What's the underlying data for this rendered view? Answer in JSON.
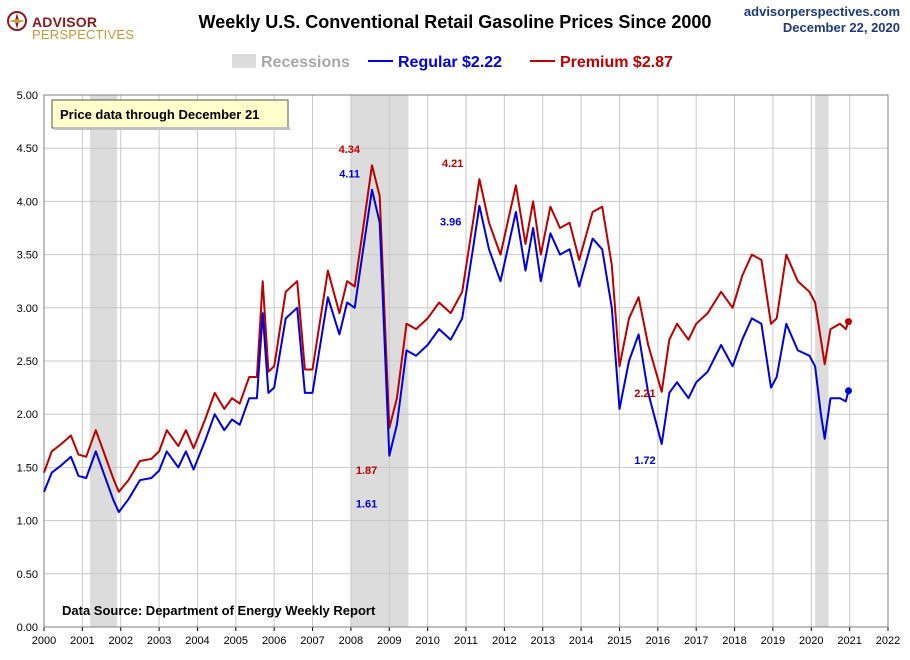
{
  "header": {
    "logo_line1": "ADVISOR",
    "logo_line2": "PERSPECTIVES",
    "site_url": "advisorperspectives.com",
    "site_date": "December 22, 2020"
  },
  "colors": {
    "regular": "#0000dd",
    "premium": "#bb0000",
    "recession": "#dcdcdc",
    "note_bg": "#ffffcc"
  },
  "chart_data": {
    "type": "line",
    "title": "Weekly U.S. Conventional Retail Gasoline Prices Since 2000",
    "xlabel": "",
    "ylabel": "",
    "xlim": [
      2000,
      2022
    ],
    "ylim": [
      0,
      5
    ],
    "x_ticks": [
      "2000",
      "2001",
      "2002",
      "2003",
      "2004",
      "2005",
      "2006",
      "2007",
      "2008",
      "2009",
      "2010",
      "2011",
      "2012",
      "2013",
      "2014",
      "2015",
      "2016",
      "2017",
      "2018",
      "2019",
      "2020",
      "2021",
      "2022"
    ],
    "y_ticks": [
      "0.00",
      "0.50",
      "1.00",
      "1.50",
      "2.00",
      "2.50",
      "3.00",
      "3.50",
      "4.00",
      "4.50",
      "5.00"
    ],
    "grid": true,
    "legend_position": "top-center",
    "recessions": {
      "label": "Recessions",
      "periods": [
        [
          2001.2,
          2001.9
        ],
        [
          2008.0,
          2009.5
        ],
        [
          2020.1,
          2020.45
        ]
      ]
    },
    "series": [
      {
        "name": "Regular",
        "legend_value": "$2.22",
        "points": [
          [
            2000.0,
            1.27
          ],
          [
            2000.2,
            1.45
          ],
          [
            2000.45,
            1.52
          ],
          [
            2000.7,
            1.6
          ],
          [
            2000.9,
            1.42
          ],
          [
            2001.1,
            1.4
          ],
          [
            2001.35,
            1.65
          ],
          [
            2001.55,
            1.45
          ],
          [
            2001.8,
            1.2
          ],
          [
            2001.95,
            1.08
          ],
          [
            2002.2,
            1.2
          ],
          [
            2002.5,
            1.38
          ],
          [
            2002.8,
            1.4
          ],
          [
            2003.0,
            1.47
          ],
          [
            2003.2,
            1.65
          ],
          [
            2003.5,
            1.5
          ],
          [
            2003.7,
            1.65
          ],
          [
            2003.9,
            1.48
          ],
          [
            2004.2,
            1.75
          ],
          [
            2004.45,
            2.0
          ],
          [
            2004.7,
            1.85
          ],
          [
            2004.9,
            1.95
          ],
          [
            2005.1,
            1.9
          ],
          [
            2005.35,
            2.15
          ],
          [
            2005.55,
            2.15
          ],
          [
            2005.7,
            2.95
          ],
          [
            2005.85,
            2.2
          ],
          [
            2006.0,
            2.25
          ],
          [
            2006.3,
            2.9
          ],
          [
            2006.6,
            3.0
          ],
          [
            2006.8,
            2.2
          ],
          [
            2007.0,
            2.2
          ],
          [
            2007.4,
            3.1
          ],
          [
            2007.7,
            2.75
          ],
          [
            2007.9,
            3.05
          ],
          [
            2008.1,
            3.0
          ],
          [
            2008.3,
            3.5
          ],
          [
            2008.55,
            4.11
          ],
          [
            2008.75,
            3.8
          ],
          [
            2008.9,
            2.5
          ],
          [
            2009.0,
            1.61
          ],
          [
            2009.2,
            1.9
          ],
          [
            2009.45,
            2.6
          ],
          [
            2009.7,
            2.55
          ],
          [
            2010.0,
            2.65
          ],
          [
            2010.3,
            2.8
          ],
          [
            2010.6,
            2.7
          ],
          [
            2010.9,
            2.9
          ],
          [
            2011.2,
            3.6
          ],
          [
            2011.35,
            3.96
          ],
          [
            2011.6,
            3.55
          ],
          [
            2011.9,
            3.25
          ],
          [
            2012.3,
            3.9
          ],
          [
            2012.55,
            3.35
          ],
          [
            2012.75,
            3.75
          ],
          [
            2012.95,
            3.25
          ],
          [
            2013.2,
            3.7
          ],
          [
            2013.45,
            3.5
          ],
          [
            2013.7,
            3.55
          ],
          [
            2013.95,
            3.2
          ],
          [
            2014.3,
            3.65
          ],
          [
            2014.55,
            3.55
          ],
          [
            2014.8,
            3.0
          ],
          [
            2015.0,
            2.05
          ],
          [
            2015.25,
            2.5
          ],
          [
            2015.5,
            2.75
          ],
          [
            2015.75,
            2.2
          ],
          [
            2016.1,
            1.72
          ],
          [
            2016.3,
            2.2
          ],
          [
            2016.5,
            2.3
          ],
          [
            2016.8,
            2.15
          ],
          [
            2017.0,
            2.3
          ],
          [
            2017.3,
            2.4
          ],
          [
            2017.65,
            2.65
          ],
          [
            2017.95,
            2.45
          ],
          [
            2018.2,
            2.7
          ],
          [
            2018.45,
            2.9
          ],
          [
            2018.7,
            2.85
          ],
          [
            2018.95,
            2.25
          ],
          [
            2019.1,
            2.35
          ],
          [
            2019.35,
            2.85
          ],
          [
            2019.65,
            2.6
          ],
          [
            2019.95,
            2.55
          ],
          [
            2020.1,
            2.45
          ],
          [
            2020.25,
            2.0
          ],
          [
            2020.35,
            1.77
          ],
          [
            2020.5,
            2.15
          ],
          [
            2020.75,
            2.15
          ],
          [
            2020.9,
            2.12
          ],
          [
            2020.97,
            2.22
          ]
        ]
      },
      {
        "name": "Premium",
        "legend_value": "$2.87",
        "points": [
          [
            2000.0,
            1.45
          ],
          [
            2000.2,
            1.65
          ],
          [
            2000.45,
            1.72
          ],
          [
            2000.7,
            1.8
          ],
          [
            2000.9,
            1.62
          ],
          [
            2001.1,
            1.6
          ],
          [
            2001.35,
            1.85
          ],
          [
            2001.55,
            1.65
          ],
          [
            2001.8,
            1.4
          ],
          [
            2001.95,
            1.27
          ],
          [
            2002.2,
            1.38
          ],
          [
            2002.5,
            1.56
          ],
          [
            2002.8,
            1.58
          ],
          [
            2003.0,
            1.65
          ],
          [
            2003.2,
            1.85
          ],
          [
            2003.5,
            1.7
          ],
          [
            2003.7,
            1.85
          ],
          [
            2003.9,
            1.68
          ],
          [
            2004.2,
            1.95
          ],
          [
            2004.45,
            2.2
          ],
          [
            2004.7,
            2.05
          ],
          [
            2004.9,
            2.15
          ],
          [
            2005.1,
            2.1
          ],
          [
            2005.35,
            2.35
          ],
          [
            2005.55,
            2.35
          ],
          [
            2005.7,
            3.25
          ],
          [
            2005.85,
            2.4
          ],
          [
            2006.0,
            2.45
          ],
          [
            2006.3,
            3.15
          ],
          [
            2006.6,
            3.25
          ],
          [
            2006.8,
            2.42
          ],
          [
            2007.0,
            2.42
          ],
          [
            2007.4,
            3.35
          ],
          [
            2007.7,
            2.95
          ],
          [
            2007.9,
            3.25
          ],
          [
            2008.1,
            3.2
          ],
          [
            2008.3,
            3.7
          ],
          [
            2008.55,
            4.34
          ],
          [
            2008.75,
            4.05
          ],
          [
            2008.9,
            2.75
          ],
          [
            2009.0,
            1.87
          ],
          [
            2009.2,
            2.15
          ],
          [
            2009.45,
            2.85
          ],
          [
            2009.7,
            2.8
          ],
          [
            2010.0,
            2.9
          ],
          [
            2010.3,
            3.05
          ],
          [
            2010.6,
            2.95
          ],
          [
            2010.9,
            3.15
          ],
          [
            2011.2,
            3.85
          ],
          [
            2011.35,
            4.21
          ],
          [
            2011.6,
            3.8
          ],
          [
            2011.9,
            3.5
          ],
          [
            2012.3,
            4.15
          ],
          [
            2012.55,
            3.6
          ],
          [
            2012.75,
            4.0
          ],
          [
            2012.95,
            3.5
          ],
          [
            2013.2,
            3.95
          ],
          [
            2013.45,
            3.75
          ],
          [
            2013.7,
            3.8
          ],
          [
            2013.95,
            3.45
          ],
          [
            2014.3,
            3.9
          ],
          [
            2014.55,
            3.95
          ],
          [
            2014.8,
            3.4
          ],
          [
            2015.0,
            2.45
          ],
          [
            2015.25,
            2.9
          ],
          [
            2015.5,
            3.1
          ],
          [
            2015.75,
            2.65
          ],
          [
            2016.1,
            2.21
          ],
          [
            2016.3,
            2.7
          ],
          [
            2016.5,
            2.85
          ],
          [
            2016.8,
            2.7
          ],
          [
            2017.0,
            2.85
          ],
          [
            2017.3,
            2.95
          ],
          [
            2017.65,
            3.15
          ],
          [
            2017.95,
            3.0
          ],
          [
            2018.2,
            3.3
          ],
          [
            2018.45,
            3.5
          ],
          [
            2018.7,
            3.45
          ],
          [
            2018.95,
            2.85
          ],
          [
            2019.1,
            2.9
          ],
          [
            2019.35,
            3.5
          ],
          [
            2019.65,
            3.25
          ],
          [
            2019.95,
            3.15
          ],
          [
            2020.1,
            3.05
          ],
          [
            2020.25,
            2.7
          ],
          [
            2020.35,
            2.47
          ],
          [
            2020.5,
            2.8
          ],
          [
            2020.75,
            2.85
          ],
          [
            2020.9,
            2.8
          ],
          [
            2020.97,
            2.87
          ]
        ]
      }
    ],
    "annotations": [
      {
        "text": "4.34",
        "series": "Premium",
        "x": 2008.55,
        "y": 4.34
      },
      {
        "text": "4.11",
        "series": "Regular",
        "x": 2008.55,
        "y": 4.11
      },
      {
        "text": "1.87",
        "series": "Premium",
        "x": 2009.0,
        "y": 1.87
      },
      {
        "text": "1.61",
        "series": "Regular",
        "x": 2009.0,
        "y": 1.61
      },
      {
        "text": "4.21",
        "series": "Premium",
        "x": 2011.35,
        "y": 4.21
      },
      {
        "text": "3.96",
        "series": "Regular",
        "x": 2011.35,
        "y": 3.96
      },
      {
        "text": "2.21",
        "series": "Premium",
        "x": 2016.1,
        "y": 2.21
      },
      {
        "text": "1.72",
        "series": "Regular",
        "x": 2016.1,
        "y": 1.72
      }
    ],
    "note": "Price data through December 21",
    "source": "Data Source: Department of Energy Weekly Report"
  }
}
